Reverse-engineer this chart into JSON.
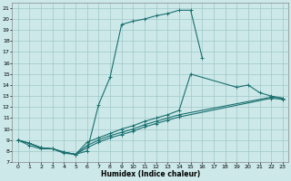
{
  "title": "",
  "xlabel": "Humidex (Indice chaleur)",
  "xlim": [
    -0.5,
    23.5
  ],
  "ylim": [
    7,
    21.5
  ],
  "yticks": [
    7,
    8,
    9,
    10,
    11,
    12,
    13,
    14,
    15,
    16,
    17,
    18,
    19,
    20,
    21
  ],
  "xticks": [
    0,
    1,
    2,
    3,
    4,
    5,
    6,
    7,
    8,
    9,
    10,
    11,
    12,
    13,
    14,
    15,
    16,
    17,
    18,
    19,
    20,
    21,
    22,
    23
  ],
  "bg_color": "#cce8e8",
  "grid_color": "#a0c8c8",
  "line_color": "#1a7070",
  "line1_x": [
    0,
    1,
    2,
    3,
    4,
    5,
    6,
    7,
    8,
    9,
    10,
    11,
    12,
    13,
    14,
    15,
    16
  ],
  "line1_y": [
    9.0,
    8.5,
    8.2,
    8.2,
    7.8,
    7.7,
    8.0,
    12.2,
    14.7,
    19.5,
    19.8,
    20.0,
    20.3,
    20.5,
    20.8,
    20.8,
    16.5
  ],
  "line2_x": [
    0,
    1,
    2,
    3,
    4,
    5,
    6,
    7,
    8,
    9,
    10,
    11,
    12,
    13,
    14,
    15,
    19,
    20,
    21,
    22,
    23
  ],
  "line2_y": [
    9.0,
    8.7,
    8.3,
    8.2,
    7.9,
    7.7,
    8.8,
    9.2,
    9.6,
    10.0,
    10.3,
    10.7,
    11.0,
    11.3,
    11.7,
    15.0,
    13.8,
    14.0,
    13.3,
    13.0,
    12.8
  ],
  "line3_x": [
    0,
    1,
    2,
    3,
    4,
    5,
    6,
    7,
    8,
    9,
    10,
    11,
    12,
    13,
    14,
    22,
    23
  ],
  "line3_y": [
    9.0,
    8.7,
    8.3,
    8.2,
    7.9,
    7.7,
    8.5,
    9.0,
    9.4,
    9.7,
    10.0,
    10.4,
    10.7,
    11.0,
    11.3,
    12.9,
    12.8
  ],
  "line4_x": [
    0,
    1,
    2,
    3,
    4,
    5,
    6,
    7,
    8,
    9,
    10,
    11,
    12,
    13,
    14,
    22,
    23
  ],
  "line4_y": [
    9.0,
    8.7,
    8.3,
    8.2,
    7.9,
    7.7,
    8.3,
    8.8,
    9.2,
    9.5,
    9.8,
    10.2,
    10.5,
    10.8,
    11.1,
    12.8,
    12.7
  ]
}
